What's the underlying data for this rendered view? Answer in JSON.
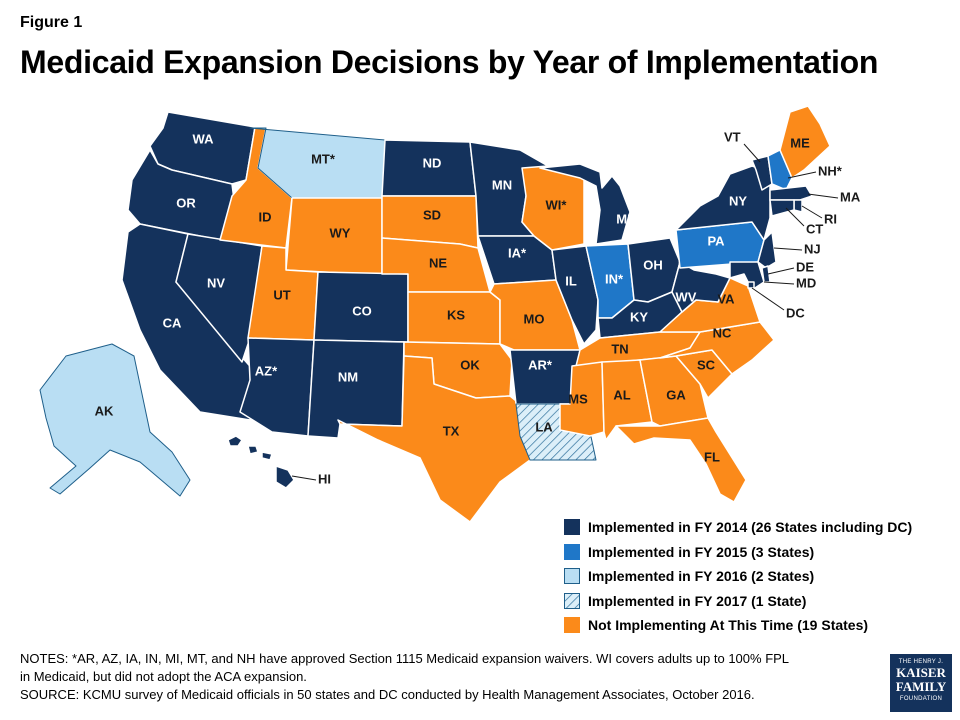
{
  "figure_label": "Figure 1",
  "title": "Medicaid Expansion Decisions by Year of Implementation",
  "colors": {
    "fy2014": "#14325c",
    "fy2015": "#1f77c8",
    "fy2016": "#b9def3",
    "fy2017": "hatched-light-blue",
    "not_implementing": "#fb8a1a"
  },
  "legend": [
    {
      "key": "fy2014",
      "label": "Implemented in FY 2014 (26 States including DC)"
    },
    {
      "key": "fy2015",
      "label": "Implemented in FY 2015 (3 States)"
    },
    {
      "key": "fy2016",
      "label": "Implemented in FY 2016 (2 States)"
    },
    {
      "key": "fy2017",
      "label": "Implemented in FY 2017 (1 State)"
    },
    {
      "key": "not_implementing",
      "label": "Not Implementing At This Time (19 States)"
    }
  ],
  "states": [
    {
      "abbr": "WA",
      "label": "WA",
      "status": "fy2014"
    },
    {
      "abbr": "OR",
      "label": "OR",
      "status": "fy2014"
    },
    {
      "abbr": "CA",
      "label": "CA",
      "status": "fy2014"
    },
    {
      "abbr": "NV",
      "label": "NV",
      "status": "fy2014"
    },
    {
      "abbr": "ID",
      "label": "ID",
      "status": "not_implementing"
    },
    {
      "abbr": "MT",
      "label": "MT*",
      "status": "fy2016"
    },
    {
      "abbr": "WY",
      "label": "WY",
      "status": "not_implementing"
    },
    {
      "abbr": "UT",
      "label": "UT",
      "status": "not_implementing"
    },
    {
      "abbr": "AZ",
      "label": "AZ*",
      "status": "fy2014"
    },
    {
      "abbr": "CO",
      "label": "CO",
      "status": "fy2014"
    },
    {
      "abbr": "NM",
      "label": "NM",
      "status": "fy2014"
    },
    {
      "abbr": "ND",
      "label": "ND",
      "status": "fy2014"
    },
    {
      "abbr": "SD",
      "label": "SD",
      "status": "not_implementing"
    },
    {
      "abbr": "NE",
      "label": "NE",
      "status": "not_implementing"
    },
    {
      "abbr": "KS",
      "label": "KS",
      "status": "not_implementing"
    },
    {
      "abbr": "OK",
      "label": "OK",
      "status": "not_implementing"
    },
    {
      "abbr": "TX",
      "label": "TX",
      "status": "not_implementing"
    },
    {
      "abbr": "MN",
      "label": "MN",
      "status": "fy2014"
    },
    {
      "abbr": "IA",
      "label": "IA*",
      "status": "fy2014"
    },
    {
      "abbr": "MO",
      "label": "MO",
      "status": "not_implementing"
    },
    {
      "abbr": "AR",
      "label": "AR*",
      "status": "fy2014"
    },
    {
      "abbr": "LA",
      "label": "LA",
      "status": "fy2017"
    },
    {
      "abbr": "WI",
      "label": "WI*",
      "status": "not_implementing"
    },
    {
      "abbr": "IL",
      "label": "IL",
      "status": "fy2014"
    },
    {
      "abbr": "MI",
      "label": "MI*",
      "status": "fy2014"
    },
    {
      "abbr": "IN",
      "label": "IN*",
      "status": "fy2015"
    },
    {
      "abbr": "OH",
      "label": "OH",
      "status": "fy2014"
    },
    {
      "abbr": "KY",
      "label": "KY",
      "status": "fy2014"
    },
    {
      "abbr": "TN",
      "label": "TN",
      "status": "not_implementing"
    },
    {
      "abbr": "MS",
      "label": "MS",
      "status": "not_implementing"
    },
    {
      "abbr": "AL",
      "label": "AL",
      "status": "not_implementing"
    },
    {
      "abbr": "GA",
      "label": "GA",
      "status": "not_implementing"
    },
    {
      "abbr": "FL",
      "label": "FL",
      "status": "not_implementing"
    },
    {
      "abbr": "SC",
      "label": "SC",
      "status": "not_implementing"
    },
    {
      "abbr": "NC",
      "label": "NC",
      "status": "not_implementing"
    },
    {
      "abbr": "VA",
      "label": "VA",
      "status": "not_implementing"
    },
    {
      "abbr": "WV",
      "label": "WV",
      "status": "fy2014"
    },
    {
      "abbr": "PA",
      "label": "PA",
      "status": "fy2015"
    },
    {
      "abbr": "NY",
      "label": "NY",
      "status": "fy2014"
    },
    {
      "abbr": "VT",
      "label": "VT",
      "status": "fy2014"
    },
    {
      "abbr": "NH",
      "label": "NH*",
      "status": "fy2015"
    },
    {
      "abbr": "ME",
      "label": "ME",
      "status": "not_implementing"
    },
    {
      "abbr": "MA",
      "label": "MA",
      "status": "fy2014"
    },
    {
      "abbr": "RI",
      "label": "RI",
      "status": "fy2014"
    },
    {
      "abbr": "CT",
      "label": "CT",
      "status": "fy2014"
    },
    {
      "abbr": "NJ",
      "label": "NJ",
      "status": "fy2014"
    },
    {
      "abbr": "DE",
      "label": "DE",
      "status": "fy2014"
    },
    {
      "abbr": "MD",
      "label": "MD",
      "status": "fy2014"
    },
    {
      "abbr": "DC",
      "label": "DC",
      "status": "fy2014"
    },
    {
      "abbr": "AK",
      "label": "AK",
      "status": "fy2016"
    },
    {
      "abbr": "HI",
      "label": "HI",
      "status": "fy2014"
    }
  ],
  "notes": {
    "line1": "NOTES: *AR, AZ, IA, IN, MI, MT, and NH have approved Section 1115 Medicaid expansion waivers. WI covers adults up to 100% FPL",
    "line2": "in Medicaid, but did not adopt the ACA expansion.",
    "line3": "SOURCE: KCMU survey of Medicaid officials in 50 states and DC conducted by Health Management Associates, October 2016."
  },
  "logo": {
    "line1": "THE HENRY J.",
    "line2": "KAISER",
    "line3": "FAMILY",
    "line4": "FOUNDATION"
  }
}
